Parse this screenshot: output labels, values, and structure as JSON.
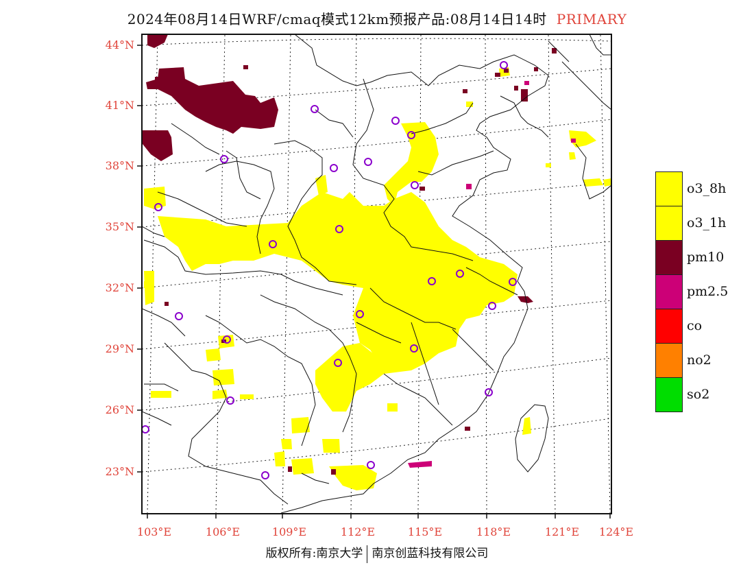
{
  "title": {
    "main": "2024年08月14日WRF/cmaq模式12km预报产品:08月14日14时",
    "mode": "PRIMARY"
  },
  "map": {
    "lat_labels": [
      "44°N",
      "41°N",
      "38°N",
      "35°N",
      "32°N",
      "29°N",
      "26°N",
      "23°N"
    ],
    "lon_labels": [
      "103°E",
      "106°E",
      "109°E",
      "112°E",
      "115°E",
      "118°E",
      "121°E",
      "124°E"
    ],
    "pollutant_colors": {
      "o3_8h": "#ffff00",
      "pm10": "#7a0022",
      "pm2.5": "#cc0077",
      "station_marker": "#8a00cc",
      "axis_label": "#e0443a"
    }
  },
  "legend": [
    {
      "label": "o3_8h",
      "color": "#ffff00"
    },
    {
      "label": "o3_1h",
      "color": "#ffff00"
    },
    {
      "label": "pm10",
      "color": "#7a0022"
    },
    {
      "label": "pm2.5",
      "color": "#cc0077"
    },
    {
      "label": "co",
      "color": "#ff0000"
    },
    {
      "label": "no2",
      "color": "#ff8000"
    },
    {
      "label": "so2",
      "color": "#00dd00"
    }
  ],
  "footer": {
    "left": "版权所有:南京大学",
    "right": "南京创蓝科技有限公司"
  }
}
